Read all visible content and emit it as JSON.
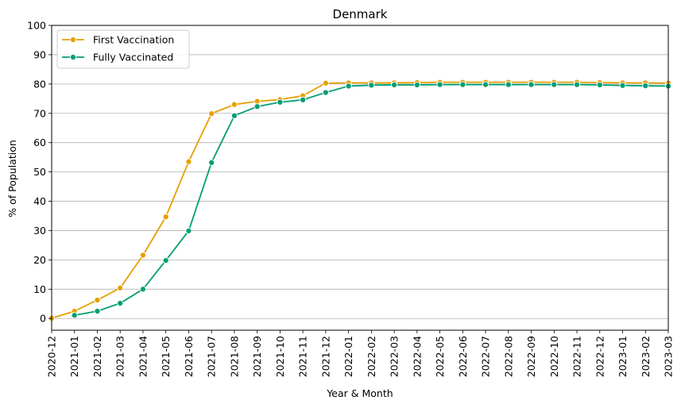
{
  "chart_data": {
    "type": "line",
    "title": "Denmark",
    "xlabel": "Year & Month",
    "ylabel": "% of Population",
    "ylim": [
      -4,
      100
    ],
    "yticks": [
      0,
      10,
      20,
      30,
      40,
      50,
      60,
      70,
      80,
      90,
      100
    ],
    "grid": "horizontal",
    "legend_position": "top-left",
    "categories": [
      "2020-12",
      "2021-01",
      "2021-02",
      "2021-03",
      "2021-04",
      "2021-05",
      "2021-06",
      "2021-07",
      "2021-08",
      "2021-09",
      "2021-10",
      "2021-11",
      "2021-12",
      "2022-01",
      "2022-02",
      "2022-03",
      "2022-04",
      "2022-05",
      "2022-06",
      "2022-07",
      "2022-08",
      "2022-09",
      "2022-10",
      "2022-11",
      "2022-12",
      "2023-01",
      "2023-02",
      "2023-03"
    ],
    "series": [
      {
        "name": "First Vaccination",
        "color": "#E69F00",
        "values": [
          0.1,
          2.5,
          6.3,
          10.4,
          21.6,
          34.7,
          53.5,
          69.9,
          73.0,
          74.1,
          74.7,
          76.0,
          80.3,
          80.4,
          80.4,
          80.4,
          80.5,
          80.6,
          80.6,
          80.6,
          80.6,
          80.6,
          80.6,
          80.6,
          80.5,
          80.4,
          80.4,
          80.3
        ]
      },
      {
        "name": "Fully Vaccinated",
        "color": "#009E73",
        "values": [
          null,
          1.1,
          2.5,
          5.2,
          10.0,
          19.8,
          29.9,
          53.2,
          69.2,
          72.3,
          73.8,
          74.6,
          77.1,
          79.3,
          79.6,
          79.7,
          79.7,
          79.8,
          79.8,
          79.8,
          79.8,
          79.8,
          79.8,
          79.8,
          79.7,
          79.5,
          79.4,
          79.3
        ]
      }
    ]
  }
}
